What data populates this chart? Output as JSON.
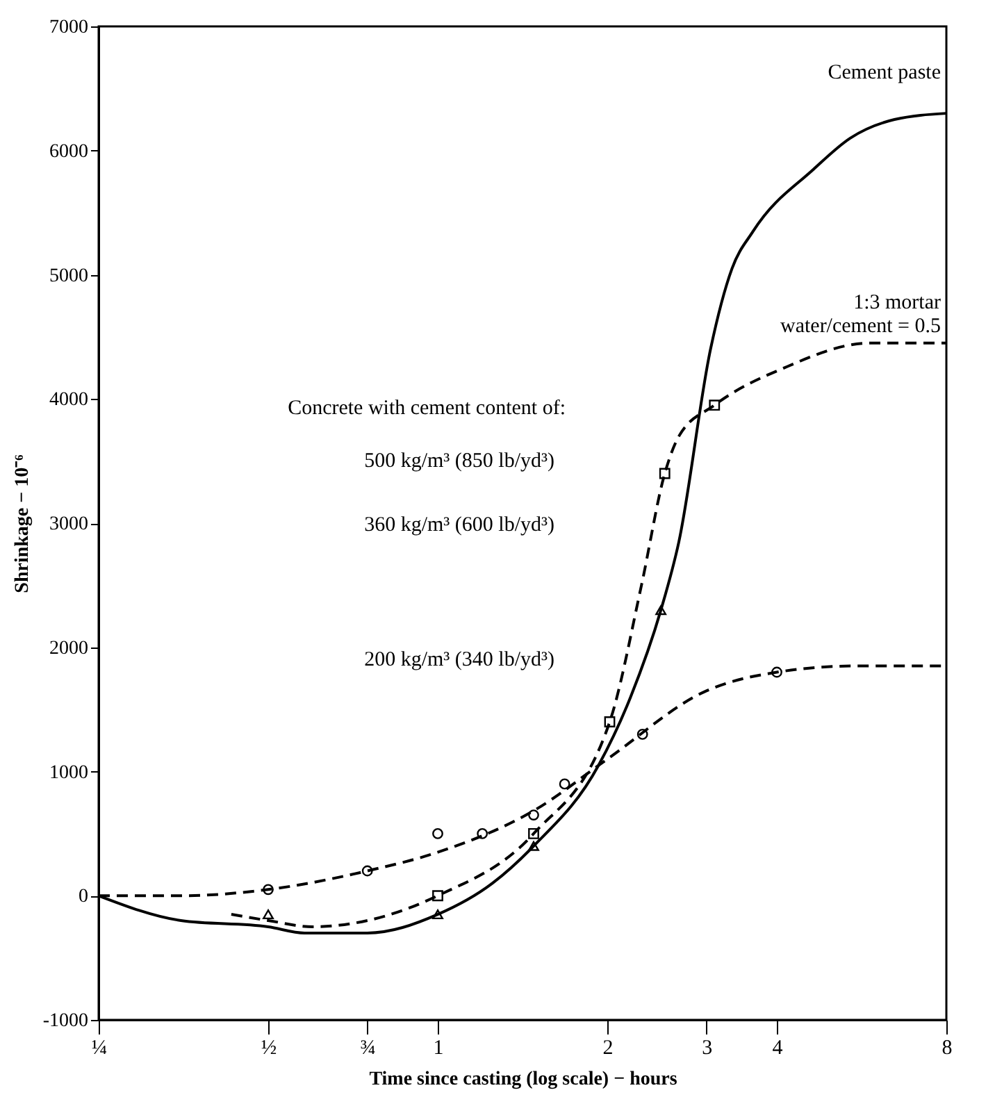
{
  "chart_data": {
    "type": "line",
    "xlabel": "Time since casting (log scale) − hours",
    "ylabel": "Shrinkage − 10⁻⁶",
    "log": "x",
    "xlim": [
      0.25,
      8
    ],
    "xticks": [
      {
        "value": 0.25,
        "label": "¼"
      },
      {
        "value": 0.5,
        "label": "½"
      },
      {
        "value": 0.75,
        "label": "¾"
      },
      1,
      2,
      3,
      4,
      8
    ],
    "ylim": [
      -1000,
      7000
    ],
    "yticks": [
      -1000,
      0,
      1000,
      2000,
      3000,
      4000,
      5000,
      6000,
      7000
    ],
    "grid": false,
    "annotations": [
      "Concrete with cement content of:",
      "500 kg/m³ (850 lb/yd³)",
      "360 kg/m³ (600 lb/yd³)",
      "200 kg/m³ (340 lb/yd³)"
    ],
    "series": [
      {
        "name": "Cement paste",
        "line_style": "solid",
        "color": "#000000",
        "x": [
          0.25,
          0.35,
          0.5,
          0.58,
          0.75,
          1,
          1.25,
          1.48,
          1.93,
          2.2,
          2.49,
          2.68,
          3.05,
          3.33,
          3.63,
          4.65,
          5.4,
          6.47,
          8
        ],
        "values": [
          0,
          -200,
          -250,
          -300,
          -300,
          -150,
          100,
          400,
          1050,
          1600,
          2300,
          2850,
          4400,
          5050,
          5350,
          5850,
          6100,
          6250,
          6300
        ]
      },
      {
        "name": "1:3 mortar\nwater/cement = 0.5",
        "line_style": "dashed",
        "color": "#000000",
        "x": [
          0.43,
          0.5,
          0.6,
          0.75,
          1,
          1.48,
          2.02,
          2.3,
          2.53,
          2.68,
          3.1,
          4.12,
          5.85,
          8
        ],
        "values": [
          -150,
          -200,
          -250,
          -200,
          0,
          500,
          1400,
          2500,
          3400,
          3700,
          3950,
          4250,
          4450,
          4450
        ]
      },
      {
        "line_style": "dashed",
        "color": "#000000",
        "x": [
          0.25,
          0.35,
          0.5,
          0.75,
          1,
          1.5,
          2,
          3,
          4,
          5.5,
          8
        ],
        "values": [
          0,
          0,
          50,
          200,
          350,
          700,
          1100,
          1650,
          1800,
          1850,
          1850
        ]
      },
      {
        "type": "scatter",
        "marker": "triangle",
        "color": "#000000",
        "x": [
          0.5,
          1,
          1.48,
          2.49
        ],
        "values": [
          -150,
          -150,
          400,
          2300
        ]
      },
      {
        "type": "scatter",
        "marker": "square",
        "color": "#000000",
        "x": [
          1,
          1.48,
          2.02,
          2.53,
          3.1
        ],
        "values": [
          0,
          500,
          1400,
          3400,
          3950
        ]
      },
      {
        "type": "scatter",
        "marker": "circle",
        "color": "#000000",
        "x": [
          0.5,
          0.75,
          1,
          1.2,
          1.48,
          1.68,
          2.31,
          4
        ],
        "values": [
          50,
          200,
          500,
          500,
          650,
          900,
          1300,
          1800
        ]
      }
    ]
  }
}
